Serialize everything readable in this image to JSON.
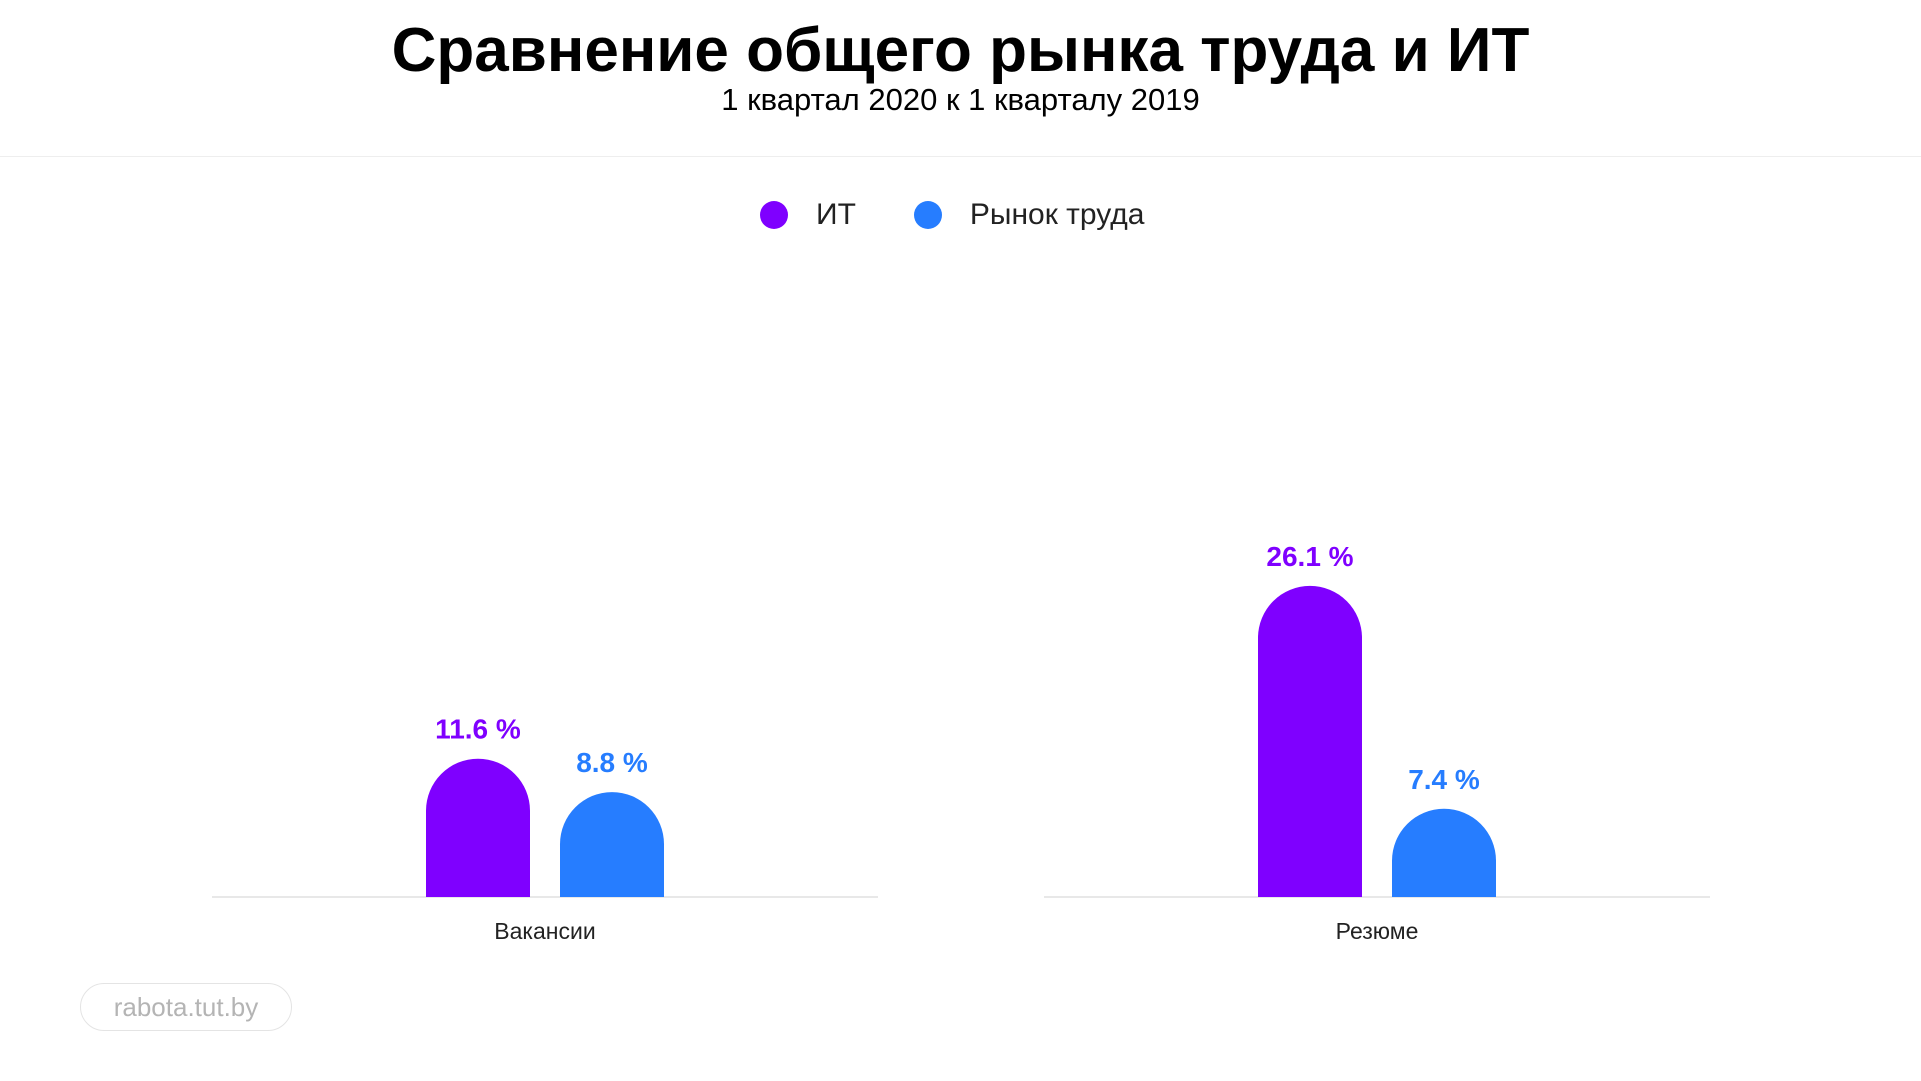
{
  "title": "Сравнение общего рынка труда и ИТ",
  "subtitle": "1 квартал 2020 к 1 кварталу 2019",
  "watermark": "rabota.tut.by",
  "chart_data": {
    "type": "bar",
    "categories": [
      "Вакансии",
      "Резюме"
    ],
    "series": [
      {
        "name": "ИТ",
        "values": [
          11.6,
          26.1
        ],
        "labels": [
          "11.6 %",
          "26.1 %"
        ],
        "color": "#7f00ff"
      },
      {
        "name": "Рынок труда",
        "values": [
          8.8,
          7.4
        ],
        "labels": [
          "8.8 %",
          "7.4 %"
        ],
        "color": "#267dff"
      }
    ],
    "ylim": [
      0,
      30
    ],
    "grid": false,
    "legend": "top-center",
    "baseline_color": "#e8e8e8"
  }
}
